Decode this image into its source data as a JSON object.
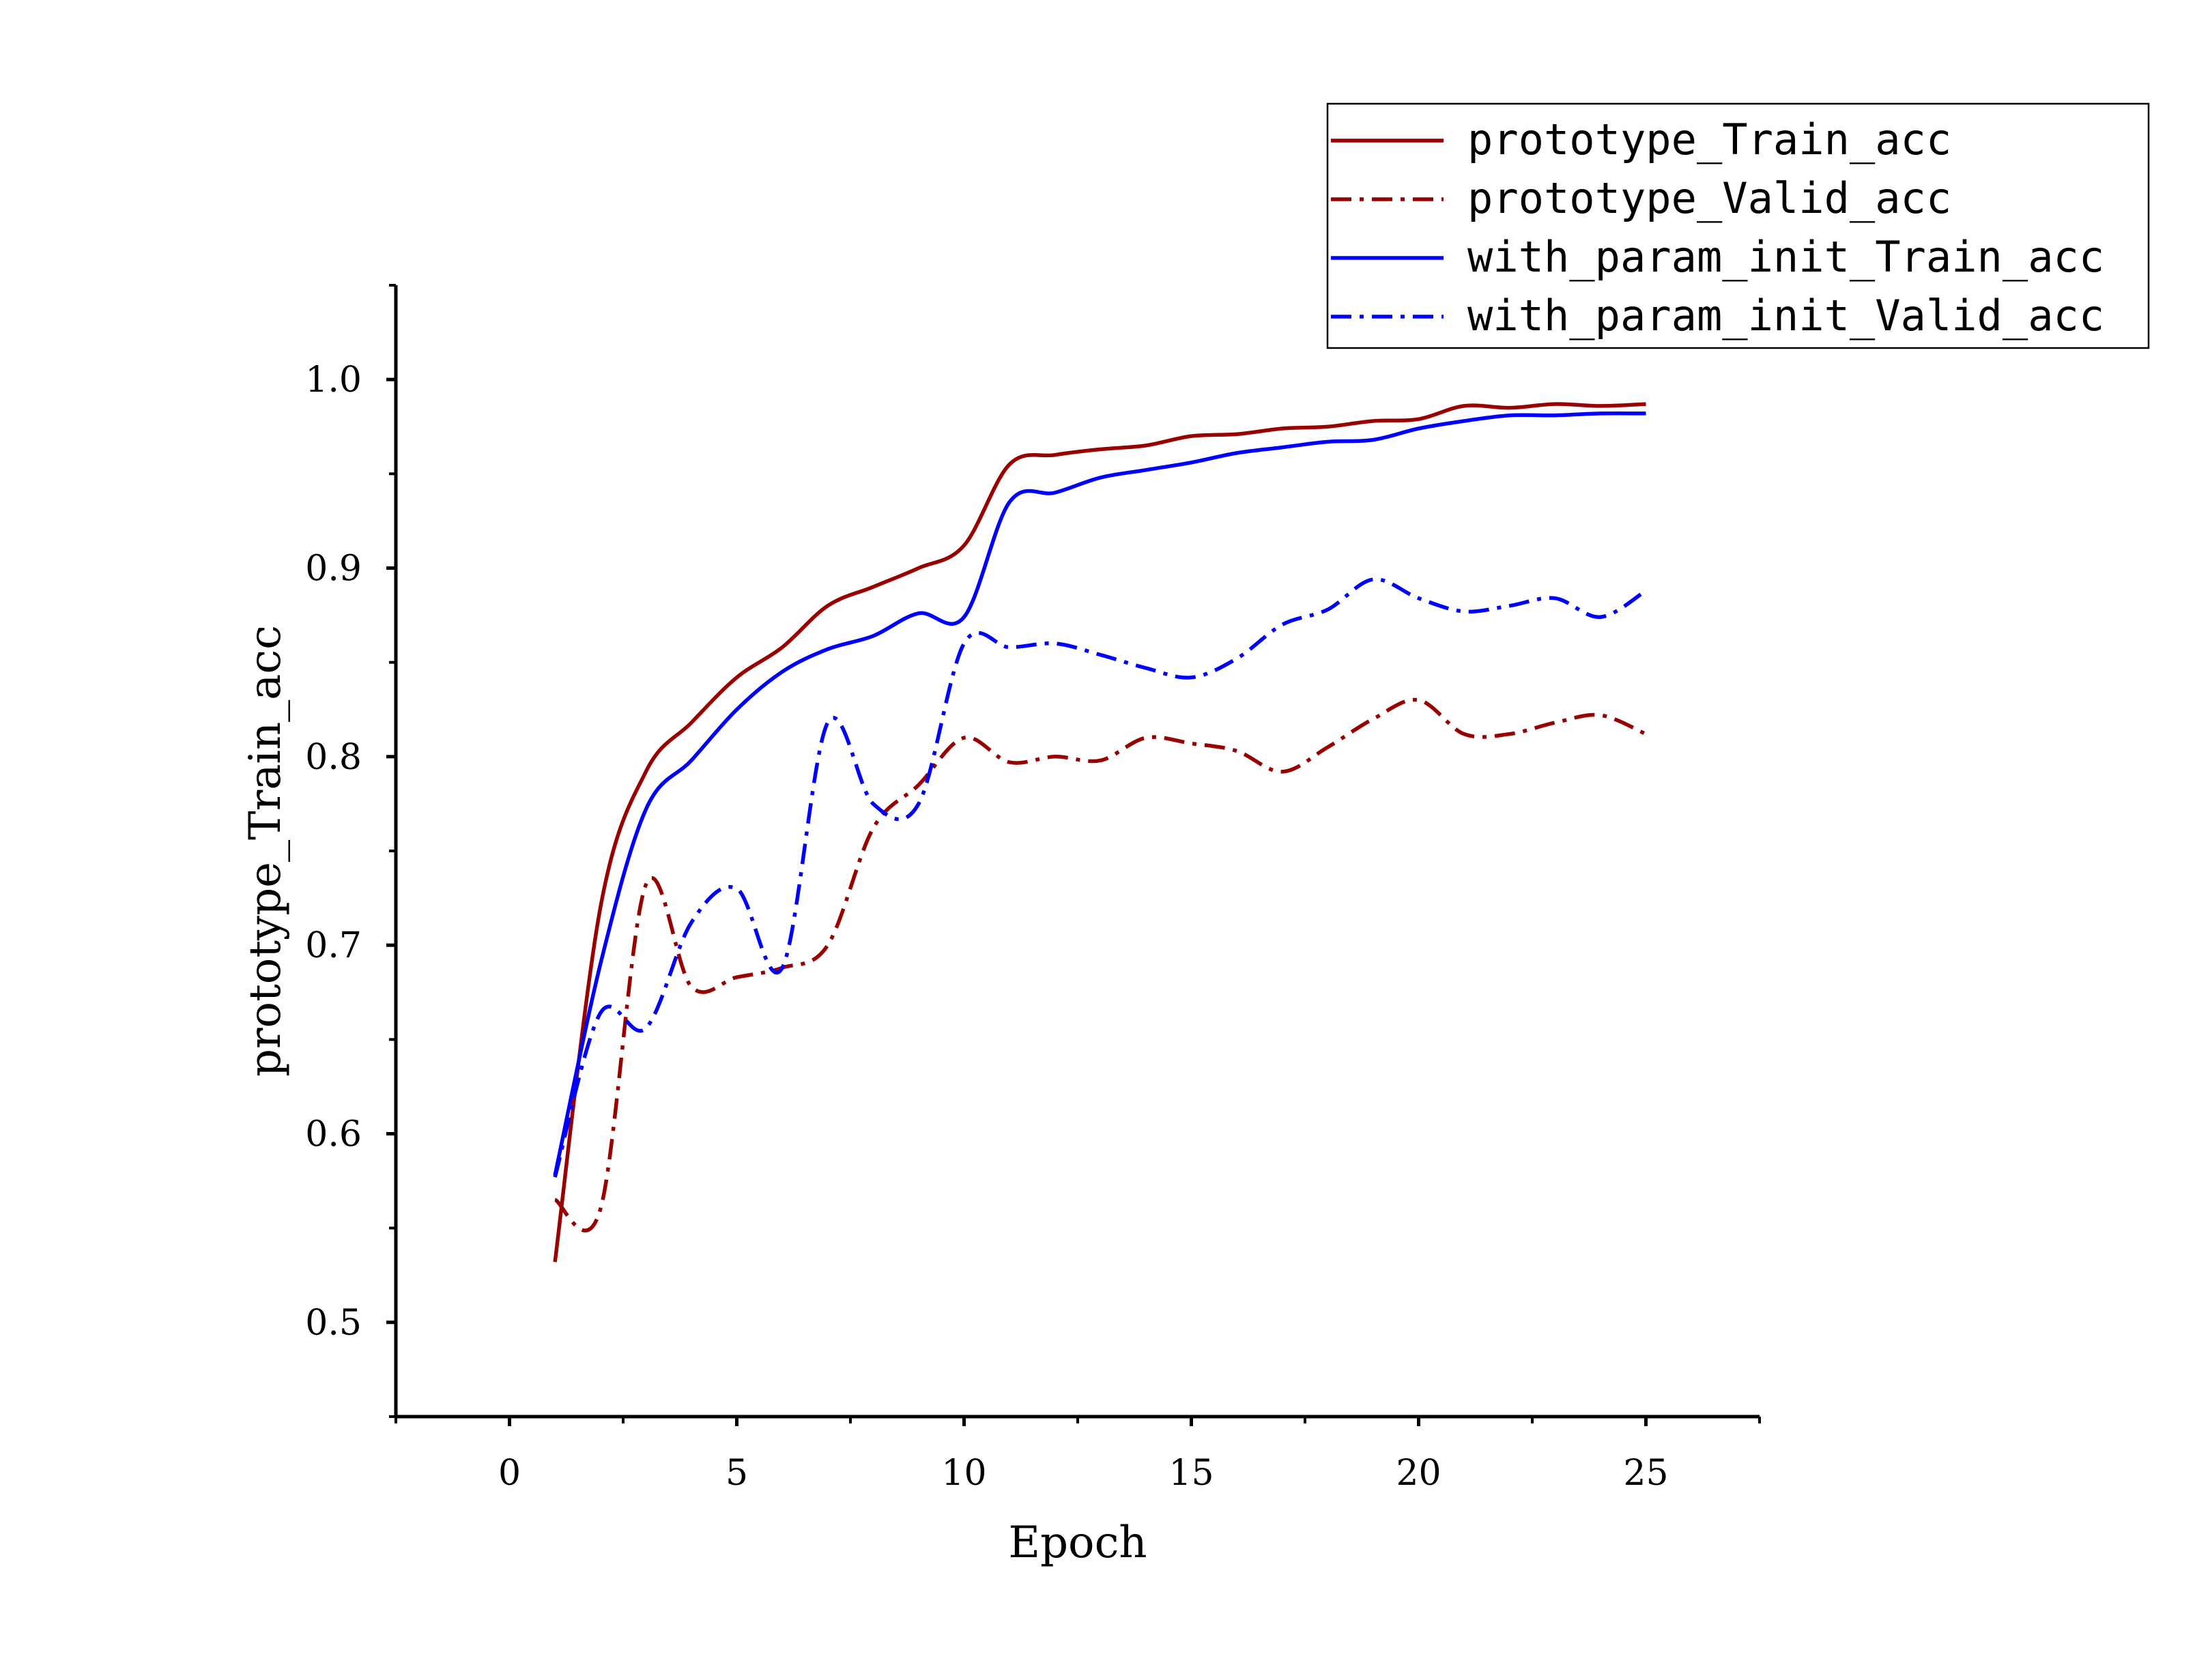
{
  "chart_data": {
    "type": "line",
    "xlabel": "Epoch",
    "ylabel": "prototype_Train_acc",
    "xlim": [
      -2.5,
      27.5
    ],
    "ylim": [
      0.45,
      1.05
    ],
    "xticks": [
      0,
      5,
      10,
      15,
      20,
      25
    ],
    "yticks": [
      0.5,
      0.6,
      0.7,
      0.8,
      0.9,
      1.0
    ],
    "xtick_labels": [
      "0",
      "5",
      "10",
      "15",
      "20",
      "25"
    ],
    "ytick_labels": [
      "0.5",
      "0.6",
      "0.7",
      "0.8",
      "0.9",
      "1.0"
    ],
    "grid": false,
    "legend": "top-right",
    "x": [
      1,
      2,
      3,
      4,
      5,
      6,
      7,
      8,
      9,
      10,
      11,
      12,
      13,
      14,
      15,
      16,
      17,
      18,
      19,
      20,
      21,
      22,
      23,
      24,
      25
    ],
    "series": [
      {
        "name": "prototype_Train_acc",
        "color": "#990000",
        "dash": "solid",
        "values": [
          0.532,
          0.72,
          0.792,
          0.818,
          0.842,
          0.858,
          0.88,
          0.89,
          0.9,
          0.912,
          0.955,
          0.96,
          0.963,
          0.965,
          0.97,
          0.971,
          0.974,
          0.975,
          0.978,
          0.979,
          0.986,
          0.985,
          0.987,
          0.986,
          0.987
        ]
      },
      {
        "name": "prototype_Valid_acc",
        "color": "#990000",
        "dash": "dashdot",
        "values": [
          0.565,
          0.56,
          0.732,
          0.678,
          0.683,
          0.688,
          0.7,
          0.762,
          0.785,
          0.81,
          0.797,
          0.8,
          0.798,
          0.81,
          0.807,
          0.803,
          0.792,
          0.805,
          0.82,
          0.83,
          0.812,
          0.812,
          0.818,
          0.822,
          0.812
        ]
      },
      {
        "name": "with_param_init_Train_acc",
        "color": "#0000ff",
        "dash": "solid",
        "values": [
          0.578,
          0.69,
          0.772,
          0.798,
          0.825,
          0.845,
          0.857,
          0.864,
          0.876,
          0.874,
          0.935,
          0.94,
          0.948,
          0.952,
          0.956,
          0.961,
          0.964,
          0.967,
          0.968,
          0.974,
          0.978,
          0.981,
          0.981,
          0.982,
          0.982
        ]
      },
      {
        "name": "with_param_init_Valid_acc",
        "color": "#0000ff",
        "dash": "dashdot",
        "values": [
          0.577,
          0.664,
          0.656,
          0.712,
          0.73,
          0.688,
          0.818,
          0.775,
          0.775,
          0.86,
          0.858,
          0.86,
          0.854,
          0.847,
          0.842,
          0.852,
          0.87,
          0.878,
          0.894,
          0.884,
          0.877,
          0.88,
          0.884,
          0.874,
          0.888
        ]
      }
    ]
  }
}
